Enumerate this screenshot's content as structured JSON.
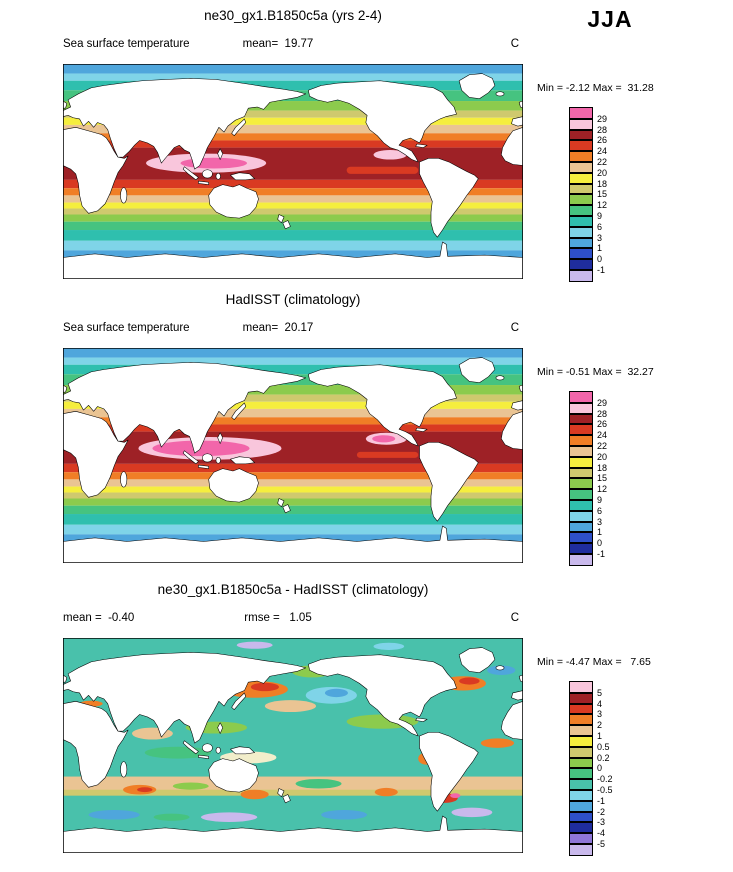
{
  "season_label": "JJA",
  "panels": [
    {
      "title": "ne30_gx1.B1850c5a (yrs 2-4)",
      "stats_left": "Sea surface temperature",
      "stats_center": "mean=  19.77",
      "stats_right": "C",
      "minmax": "Min = -2.12 Max =  31.28",
      "colorbar_labels": [
        "29",
        "28",
        "26",
        "24",
        "22",
        "20",
        "18",
        "15",
        "12",
        "9",
        "6",
        "3",
        "1",
        "0",
        "-1"
      ],
      "colorbar_colors": [
        "#f266aa",
        "#f9c6dc",
        "#9e2126",
        "#d93a22",
        "#f07e26",
        "#eac493",
        "#f5ee3e",
        "#cfc96e",
        "#8ccb4d",
        "#46c380",
        "#2fbfae",
        "#7fd4e8",
        "#4fa6dc",
        "#2e50c9",
        "#1f2d9e",
        "#c9b9ec"
      ]
    },
    {
      "title": "HadISST (climatology)",
      "stats_left": "Sea surface temperature",
      "stats_center": "mean=  20.17",
      "stats_right": "C",
      "minmax": "Min = -0.51 Max =  32.27",
      "colorbar_labels": [
        "29",
        "28",
        "26",
        "24",
        "22",
        "20",
        "18",
        "15",
        "12",
        "9",
        "6",
        "3",
        "1",
        "0",
        "-1"
      ],
      "colorbar_colors": [
        "#f266aa",
        "#f9c6dc",
        "#9e2126",
        "#d93a22",
        "#f07e26",
        "#eac493",
        "#f5ee3e",
        "#cfc96e",
        "#8ccb4d",
        "#46c380",
        "#2fbfae",
        "#7fd4e8",
        "#4fa6dc",
        "#2e50c9",
        "#1f2d9e",
        "#c9b9ec"
      ]
    },
    {
      "title": "ne30_gx1.B1850c5a - HadISST (climatology)",
      "stats_left": "mean =  -0.40",
      "stats_center": "rmse =   1.05",
      "stats_right": "C",
      "minmax": "Min = -4.47 Max =   7.65",
      "colorbar_labels": [
        "5",
        "4",
        "3",
        "2",
        "1",
        "0.5",
        "0.2",
        "0",
        "-0.2",
        "-0.5",
        "-1",
        "-2",
        "-3",
        "-4",
        "-5"
      ],
      "colorbar_colors": [
        "#f9c6dc",
        "#9e2126",
        "#d93a22",
        "#f07e26",
        "#eac493",
        "#f5ee3e",
        "#cfc96e",
        "#8ccb4d",
        "#46c380",
        "#49c1ab",
        "#7fd4e8",
        "#4fa6dc",
        "#2e50c9",
        "#1f2d9e",
        "#8f77d8",
        "#c9b9ec"
      ]
    }
  ],
  "chart_data": [
    {
      "type": "heatmap",
      "subtype": "global-latlon-map",
      "title": "ne30_gx1.B1850c5a (yrs 2-4)",
      "variable": "Sea surface temperature",
      "season": "JJA",
      "units": "C",
      "mean": 19.77,
      "min": -2.12,
      "max": 31.28,
      "contour_levels": [
        29,
        28,
        26,
        24,
        22,
        20,
        18,
        15,
        12,
        9,
        6,
        3,
        1,
        0,
        -1
      ],
      "colorbar_position": "right"
    },
    {
      "type": "heatmap",
      "subtype": "global-latlon-map",
      "title": "HadISST (climatology)",
      "variable": "Sea surface temperature",
      "season": "JJA",
      "units": "C",
      "mean": 20.17,
      "min": -0.51,
      "max": 32.27,
      "contour_levels": [
        29,
        28,
        26,
        24,
        22,
        20,
        18,
        15,
        12,
        9,
        6,
        3,
        1,
        0,
        -1
      ],
      "colorbar_position": "right"
    },
    {
      "type": "heatmap",
      "subtype": "global-latlon-map-difference",
      "title": "ne30_gx1.B1850c5a - HadISST (climatology)",
      "season": "JJA",
      "units": "C",
      "mean": -0.4,
      "rmse": 1.05,
      "min": -4.47,
      "max": 7.65,
      "contour_levels": [
        5,
        4,
        3,
        2,
        1,
        0.5,
        0.2,
        0,
        -0.2,
        -0.5,
        -1,
        -2,
        -3,
        -4,
        -5
      ],
      "colorbar_position": "right"
    }
  ]
}
